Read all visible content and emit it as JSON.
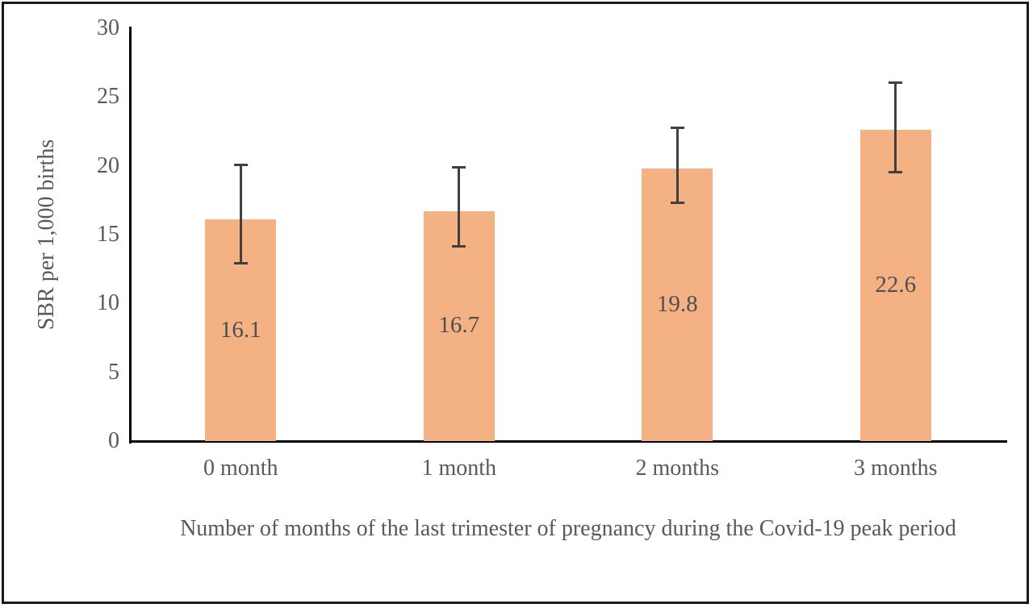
{
  "figure": {
    "background": "#ffffff",
    "border_color": "#1a1a1a"
  },
  "chart_data": {
    "type": "bar",
    "title": "",
    "xlabel": "Number of months of the last trimester of pregnancy during the Covid-19 peak period",
    "ylabel": "SBR per 1,000 births",
    "categories": [
      "0 month",
      "1 month",
      "2 months",
      "3 months"
    ],
    "values": [
      16.1,
      16.7,
      19.8,
      22.6
    ],
    "data_labels": [
      "16.1",
      "16.7",
      "19.8",
      "22.6"
    ],
    "error_low": [
      12.9,
      14.1,
      17.3,
      19.5
    ],
    "error_high": [
      20.1,
      19.9,
      22.8,
      26.1
    ],
    "ylim": [
      0,
      30
    ],
    "yticks": [
      0,
      5,
      10,
      15,
      20,
      25,
      30
    ],
    "grid": false,
    "legend": "none",
    "colors": {
      "bar_fill": "#F4B183",
      "error_bar": "#404040",
      "axis_line": "#000000",
      "tick_text": "#595959",
      "label_text": "#4f4f4f"
    }
  }
}
